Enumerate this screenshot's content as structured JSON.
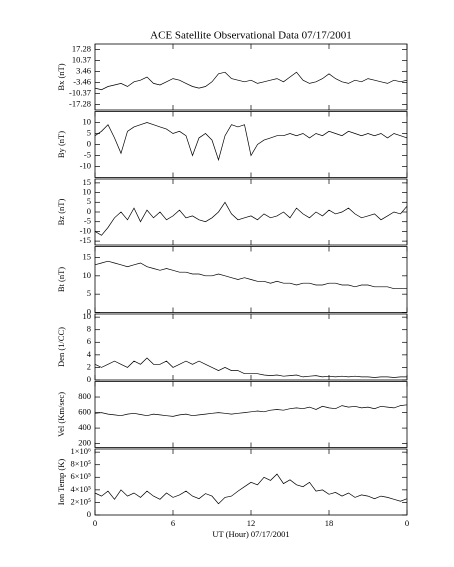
{
  "chart_data": [
    {
      "type": "line",
      "title": "ACE Satellite Observational Data  07/17/2001",
      "ylabel": "Bx (nT)",
      "color": "#000000",
      "x": [
        0,
        0.5,
        1,
        1.5,
        2,
        2.5,
        3,
        3.5,
        4,
        4.5,
        5,
        5.5,
        6,
        6.5,
        7,
        7.5,
        8,
        8.5,
        9,
        9.5,
        10,
        10.5,
        11,
        11.5,
        12,
        12.5,
        13,
        13.5,
        14,
        14.5,
        15,
        15.5,
        16,
        16.5,
        17,
        17.5,
        18,
        18.5,
        19,
        19.5,
        20,
        20.5,
        21,
        21.5,
        22,
        22.5,
        23,
        23.5,
        24
      ],
      "values": [
        -7,
        -8,
        -6,
        -5,
        -4,
        -6,
        -3,
        -2,
        0,
        -4,
        -5,
        -3,
        -1,
        -2,
        -4,
        -6,
        -7,
        -6,
        -3,
        2,
        3,
        -1,
        -2,
        -3,
        -2,
        -4,
        -3,
        -2,
        -1,
        -3,
        0,
        3,
        -2,
        -4,
        -3,
        -1,
        2,
        -1,
        -3,
        -4,
        -2,
        -3,
        -1,
        -2,
        -3,
        -4,
        -2,
        -3,
        -2
      ],
      "xlim": [
        0,
        24
      ],
      "ylim": [
        -20.74,
        20.74
      ],
      "yticks": [
        17.28,
        10.37,
        3.46,
        -3.46,
        -10.37,
        -17.28
      ]
    },
    {
      "type": "line",
      "ylabel": "By (nT)",
      "color": "#000000",
      "x": [
        0,
        0.5,
        1,
        1.5,
        2,
        2.5,
        3,
        3.5,
        4,
        4.5,
        5,
        5.5,
        6,
        6.5,
        7,
        7.5,
        8,
        8.5,
        9,
        9.5,
        10,
        10.5,
        11,
        11.5,
        12,
        12.5,
        13,
        13.5,
        14,
        14.5,
        15,
        15.5,
        16,
        16.5,
        17,
        17.5,
        18,
        18.5,
        19,
        19.5,
        20,
        20.5,
        21,
        21.5,
        22,
        22.5,
        23,
        23.5,
        24
      ],
      "values": [
        4,
        6,
        9,
        3,
        -4,
        6,
        8,
        9,
        10,
        9,
        8,
        7,
        5,
        6,
        4,
        -5,
        3,
        5,
        2,
        -7,
        4,
        9,
        8,
        9,
        -5,
        0,
        2,
        3,
        4,
        4,
        5,
        4,
        5,
        3,
        5,
        4,
        6,
        5,
        4,
        6,
        5,
        4,
        5,
        4,
        5,
        3,
        5,
        4,
        3
      ],
      "xlim": [
        0,
        24
      ],
      "ylim": [
        -15,
        15
      ],
      "yticks": [
        10,
        5,
        0,
        -5,
        -10
      ]
    },
    {
      "type": "line",
      "ylabel": "Bz (nT)",
      "color": "#000000",
      "x": [
        0,
        0.5,
        1,
        1.5,
        2,
        2.5,
        3,
        3.5,
        4,
        4.5,
        5,
        5.5,
        6,
        6.5,
        7,
        7.5,
        8,
        8.5,
        9,
        9.5,
        10,
        10.5,
        11,
        11.5,
        12,
        12.5,
        13,
        13.5,
        14,
        14.5,
        15,
        15.5,
        16,
        16.5,
        17,
        17.5,
        18,
        18.5,
        19,
        19.5,
        20,
        20.5,
        21,
        21.5,
        22,
        22.5,
        23,
        23.5,
        24
      ],
      "values": [
        -10,
        -12,
        -8,
        -3,
        0,
        -4,
        2,
        -5,
        1,
        -3,
        0,
        -4,
        -2,
        1,
        -3,
        -2,
        -4,
        -5,
        -3,
        0,
        5,
        -1,
        -4,
        -3,
        -2,
        -4,
        -1,
        -3,
        -2,
        0,
        -3,
        2,
        -1,
        -3,
        0,
        -2,
        1,
        -1,
        0,
        2,
        -1,
        -3,
        -2,
        -1,
        -4,
        -2,
        0,
        -1,
        3
      ],
      "xlim": [
        0,
        24
      ],
      "ylim": [
        -17,
        17
      ],
      "yticks": [
        15,
        10,
        5,
        0,
        -5,
        -10,
        -15
      ]
    },
    {
      "type": "line",
      "ylabel": "Bt (nT)",
      "color": "#000000",
      "x": [
        0,
        0.5,
        1,
        1.5,
        2,
        2.5,
        3,
        3.5,
        4,
        4.5,
        5,
        5.5,
        6,
        6.5,
        7,
        7.5,
        8,
        8.5,
        9,
        9.5,
        10,
        10.5,
        11,
        11.5,
        12,
        12.5,
        13,
        13.5,
        14,
        14.5,
        15,
        15.5,
        16,
        16.5,
        17,
        17.5,
        18,
        18.5,
        19,
        19.5,
        20,
        20.5,
        21,
        21.5,
        22,
        22.5,
        23,
        23.5,
        24
      ],
      "values": [
        13,
        13.5,
        14,
        13.5,
        13,
        12.5,
        13,
        13.5,
        12.5,
        12,
        11.5,
        12,
        11.5,
        11,
        11,
        10.5,
        10.5,
        10,
        10,
        10.5,
        10,
        9.5,
        9,
        9.5,
        9,
        8.5,
        8.5,
        8,
        8.5,
        8,
        8,
        7.5,
        8,
        8,
        7.5,
        7.5,
        8,
        8,
        7.5,
        7.5,
        7,
        7.5,
        7.5,
        7,
        7,
        7,
        6.5,
        6.5,
        6.5
      ],
      "xlim": [
        0,
        24
      ],
      "ylim": [
        0,
        18
      ],
      "yticks": [
        0,
        5,
        10,
        15
      ]
    },
    {
      "type": "line",
      "ylabel": "Den (1/CC)",
      "color": "#000000",
      "x": [
        0,
        0.5,
        1,
        1.5,
        2,
        2.5,
        3,
        3.5,
        4,
        4.5,
        5,
        5.5,
        6,
        6.5,
        7,
        7.5,
        8,
        8.5,
        9,
        9.5,
        10,
        10.5,
        11,
        11.5,
        12,
        12.5,
        13,
        13.5,
        14,
        14.5,
        15,
        15.5,
        16,
        16.5,
        17,
        17.5,
        18,
        18.5,
        19,
        19.5,
        20,
        20.5,
        21,
        21.5,
        22,
        22.5,
        23,
        23.5,
        24
      ],
      "values": [
        2.5,
        2,
        2.5,
        3,
        2.5,
        2,
        3,
        2.5,
        3.5,
        2.5,
        2.5,
        3,
        2,
        2.5,
        3,
        2.5,
        3,
        2.5,
        2,
        1.5,
        2,
        1.5,
        1.5,
        1,
        1,
        1,
        0.8,
        0.7,
        0.8,
        0.6,
        0.7,
        0.8,
        0.5,
        0.6,
        0.7,
        0.5,
        0.6,
        0.5,
        0.6,
        0.5,
        0.6,
        0.5,
        0.5,
        0.4,
        0.5,
        0.5,
        0.4,
        0.5,
        0.5
      ],
      "xlim": [
        0,
        24
      ],
      "ylim": [
        0,
        10.5
      ],
      "yticks": [
        0,
        2,
        4,
        6,
        8,
        10
      ]
    },
    {
      "type": "line",
      "ylabel": "Vel (Km/sec)",
      "color": "#000000",
      "x": [
        0,
        0.5,
        1,
        1.5,
        2,
        2.5,
        3,
        3.5,
        4,
        4.5,
        5,
        5.5,
        6,
        6.5,
        7,
        7.5,
        8,
        8.5,
        9,
        9.5,
        10,
        10.5,
        11,
        11.5,
        12,
        12.5,
        13,
        13.5,
        14,
        14.5,
        15,
        15.5,
        16,
        16.5,
        17,
        17.5,
        18,
        18.5,
        19,
        19.5,
        20,
        20.5,
        21,
        21.5,
        22,
        22.5,
        23,
        23.5,
        24
      ],
      "values": [
        590,
        600,
        580,
        570,
        560,
        580,
        590,
        575,
        560,
        580,
        570,
        560,
        550,
        570,
        580,
        560,
        570,
        580,
        590,
        600,
        590,
        580,
        590,
        600,
        610,
        620,
        610,
        630,
        640,
        630,
        650,
        660,
        650,
        670,
        640,
        680,
        660,
        650,
        690,
        670,
        680,
        660,
        670,
        650,
        680,
        670,
        660,
        690,
        700
      ],
      "xlim": [
        0,
        24
      ],
      "ylim": [
        150,
        1000
      ],
      "yticks": [
        200,
        400,
        600,
        800
      ]
    },
    {
      "type": "line",
      "ylabel": "Ion Temp (K)",
      "xlabel": "UT (Hour)  07/17/2001",
      "color": "#000000",
      "x": [
        0,
        0.5,
        1,
        1.5,
        2,
        2.5,
        3,
        3.5,
        4,
        4.5,
        5,
        5.5,
        6,
        6.5,
        7,
        7.5,
        8,
        8.5,
        9,
        9.5,
        10,
        10.5,
        11,
        11.5,
        12,
        12.5,
        13,
        13.5,
        14,
        14.5,
        15,
        15.5,
        16,
        16.5,
        17,
        17.5,
        18,
        18.5,
        19,
        19.5,
        20,
        20.5,
        21,
        21.5,
        22,
        22.5,
        23,
        23.5,
        24
      ],
      "values": [
        350000,
        300000,
        380000,
        250000,
        400000,
        300000,
        350000,
        280000,
        380000,
        300000,
        250000,
        350000,
        280000,
        320000,
        380000,
        300000,
        260000,
        340000,
        300000,
        180000,
        280000,
        300000,
        380000,
        450000,
        520000,
        480000,
        600000,
        550000,
        650000,
        500000,
        560000,
        480000,
        450000,
        520000,
        380000,
        400000,
        330000,
        360000,
        300000,
        350000,
        280000,
        320000,
        300000,
        260000,
        300000,
        280000,
        250000,
        220000,
        260000
      ],
      "xlim": [
        0,
        24
      ],
      "xticks": [
        0,
        6,
        12,
        18,
        {
          "value": 24,
          "label": "0"
        }
      ],
      "ylim": [
        0,
        1050000
      ],
      "yticks": [
        0,
        {
          "value": 200000,
          "label": "2×10⁵"
        },
        {
          "value": 400000,
          "label": "4×10⁵"
        },
        {
          "value": 600000,
          "label": "6×10⁵"
        },
        {
          "value": 800000,
          "label": "8×10⁵"
        },
        {
          "value": 1000000,
          "label": "1×10⁶"
        }
      ]
    }
  ]
}
